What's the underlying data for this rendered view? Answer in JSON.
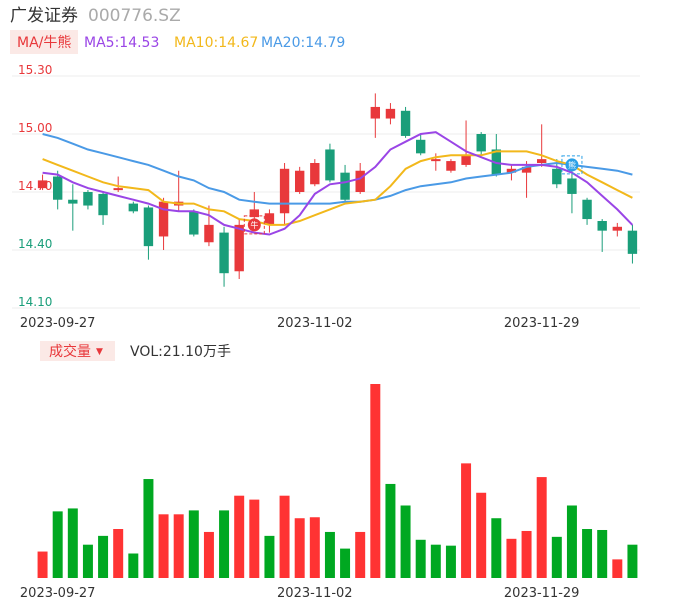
{
  "header": {
    "stock_name": "广发证券",
    "stock_code": "000776.SZ"
  },
  "legend": {
    "ma_label": "MA/牛熊",
    "ma5": "MA5:14.53",
    "ma10": "MA10:14.67",
    "ma20": "MA20:14.79"
  },
  "volume_legend": {
    "label": "成交量",
    "arrow": "▼",
    "vol": "VOL:21.10万手"
  },
  "markers": {
    "bull": "牛",
    "bear": "熊"
  },
  "colors": {
    "up": "#e8383b",
    "down": "#1a9e7a",
    "vol_up": "#ff3333",
    "vol_down": "#00a821",
    "ma5": "#9a45e6",
    "ma10": "#f2b81b",
    "ma20": "#4a9ae6",
    "price_axis": "#e8383b",
    "price_axis_low": "#1a9e7a"
  },
  "chart_data": [
    {
      "type": "candlestick",
      "ylim": [
        14.1,
        15.3
      ],
      "yticks": [
        "15.30",
        "15.00",
        "14.70",
        "14.40",
        "14.10"
      ],
      "xticks": [
        {
          "index": 1,
          "label": "2023-09-27"
        },
        {
          "index": 18,
          "label": "2023-11-02"
        },
        {
          "index": 33,
          "label": "2023-11-29"
        }
      ],
      "candles": [
        {
          "o": 14.72,
          "c": 14.76,
          "h": 14.79,
          "l": 14.71
        },
        {
          "o": 14.78,
          "c": 14.66,
          "h": 14.81,
          "l": 14.61
        },
        {
          "o": 14.66,
          "c": 14.64,
          "h": 14.74,
          "l": 14.5
        },
        {
          "o": 14.7,
          "c": 14.63,
          "h": 14.71,
          "l": 14.61
        },
        {
          "o": 14.69,
          "c": 14.58,
          "h": 14.7,
          "l": 14.53
        },
        {
          "o": 14.71,
          "c": 14.72,
          "h": 14.78,
          "l": 14.7
        },
        {
          "o": 14.64,
          "c": 14.6,
          "h": 14.65,
          "l": 14.59
        },
        {
          "o": 14.62,
          "c": 14.42,
          "h": 14.63,
          "l": 14.35
        },
        {
          "o": 14.47,
          "c": 14.65,
          "h": 14.67,
          "l": 14.4
        },
        {
          "o": 14.63,
          "c": 14.65,
          "h": 14.81,
          "l": 14.6
        },
        {
          "o": 14.6,
          "c": 14.48,
          "h": 14.61,
          "l": 14.47
        },
        {
          "o": 14.44,
          "c": 14.53,
          "h": 14.63,
          "l": 14.42
        },
        {
          "o": 14.49,
          "c": 14.28,
          "h": 14.52,
          "l": 14.21
        },
        {
          "o": 14.29,
          "c": 14.53,
          "h": 14.56,
          "l": 14.25
        },
        {
          "o": 14.57,
          "c": 14.61,
          "h": 14.7,
          "l": 14.55
        },
        {
          "o": 14.53,
          "c": 14.59,
          "h": 14.61,
          "l": 14.49
        },
        {
          "o": 14.59,
          "c": 14.82,
          "h": 14.85,
          "l": 14.53
        },
        {
          "o": 14.7,
          "c": 14.81,
          "h": 14.83,
          "l": 14.69
        },
        {
          "o": 14.74,
          "c": 14.85,
          "h": 14.87,
          "l": 14.73
        },
        {
          "o": 14.92,
          "c": 14.76,
          "h": 14.95,
          "l": 14.75
        },
        {
          "o": 14.8,
          "c": 14.66,
          "h": 14.84,
          "l": 14.64
        },
        {
          "o": 14.7,
          "c": 14.81,
          "h": 14.85,
          "l": 14.69
        },
        {
          "o": 15.08,
          "c": 15.14,
          "h": 15.21,
          "l": 14.98
        },
        {
          "o": 15.08,
          "c": 15.13,
          "h": 15.16,
          "l": 15.05
        },
        {
          "o": 15.12,
          "c": 14.99,
          "h": 15.14,
          "l": 14.98
        },
        {
          "o": 14.97,
          "c": 14.9,
          "h": 15.0,
          "l": 14.89
        },
        {
          "o": 14.86,
          "c": 14.87,
          "h": 14.9,
          "l": 14.81
        },
        {
          "o": 14.81,
          "c": 14.86,
          "h": 14.87,
          "l": 14.8
        },
        {
          "o": 14.84,
          "c": 14.89,
          "h": 15.07,
          "l": 14.83
        },
        {
          "o": 15.0,
          "c": 14.91,
          "h": 15.01,
          "l": 14.89
        },
        {
          "o": 14.92,
          "c": 14.79,
          "h": 15.0,
          "l": 14.78
        },
        {
          "o": 14.8,
          "c": 14.82,
          "h": 14.84,
          "l": 14.76
        },
        {
          "o": 14.8,
          "c": 14.83,
          "h": 14.86,
          "l": 14.67
        },
        {
          "o": 14.85,
          "c": 14.87,
          "h": 15.05,
          "l": 14.83
        },
        {
          "o": 14.82,
          "c": 14.74,
          "h": 14.87,
          "l": 14.72
        },
        {
          "o": 14.77,
          "c": 14.69,
          "h": 14.85,
          "l": 14.59
        },
        {
          "o": 14.66,
          "c": 14.56,
          "h": 14.67,
          "l": 14.53
        },
        {
          "o": 14.55,
          "c": 14.5,
          "h": 14.56,
          "l": 14.39
        },
        {
          "o": 14.5,
          "c": 14.52,
          "h": 14.54,
          "l": 14.47
        },
        {
          "o": 14.5,
          "c": 14.38,
          "h": 14.53,
          "l": 14.33
        }
      ],
      "ma5": [
        14.8,
        14.79,
        14.75,
        14.72,
        14.7,
        14.68,
        14.66,
        14.64,
        14.61,
        14.6,
        14.6,
        14.58,
        14.53,
        14.51,
        14.49,
        14.48,
        14.51,
        14.58,
        14.69,
        14.74,
        14.75,
        14.77,
        14.83,
        14.92,
        14.96,
        15.0,
        15.01,
        14.96,
        14.91,
        14.88,
        14.85,
        14.84,
        14.84,
        14.84,
        14.83,
        14.8,
        14.75,
        14.68,
        14.61,
        14.53
      ],
      "ma10": [
        14.87,
        14.84,
        14.81,
        14.78,
        14.75,
        14.73,
        14.72,
        14.71,
        14.65,
        14.64,
        14.64,
        14.61,
        14.6,
        14.56,
        14.55,
        14.53,
        14.53,
        14.55,
        14.58,
        14.61,
        14.64,
        14.65,
        14.66,
        14.73,
        14.82,
        14.86,
        14.88,
        14.89,
        14.89,
        14.89,
        14.91,
        14.91,
        14.91,
        14.89,
        14.86,
        14.84,
        14.79,
        14.75,
        14.71,
        14.67
      ],
      "ma20": [
        15.0,
        14.98,
        14.95,
        14.92,
        14.9,
        14.88,
        14.86,
        14.84,
        14.81,
        14.78,
        14.76,
        14.72,
        14.7,
        14.66,
        14.65,
        14.64,
        14.64,
        14.64,
        14.64,
        14.64,
        14.65,
        14.65,
        14.66,
        14.68,
        14.71,
        14.73,
        14.74,
        14.75,
        14.77,
        14.78,
        14.79,
        14.8,
        14.83,
        14.84,
        14.85,
        14.84,
        14.83,
        14.82,
        14.81,
        14.79
      ],
      "bull_index": 14,
      "bear_index": 35
    },
    {
      "type": "bar",
      "volumes": [
        27,
        68,
        71,
        34,
        43,
        50,
        25,
        101,
        65,
        65,
        69,
        47,
        69,
        84,
        80,
        43,
        84,
        61,
        62,
        47,
        30,
        47,
        198,
        96,
        74,
        39,
        34,
        33,
        117,
        87,
        61,
        40,
        48,
        103,
        42,
        74,
        50,
        49,
        19,
        34
      ],
      "directions": [
        "up",
        "down",
        "down",
        "down",
        "down",
        "up",
        "down",
        "down",
        "up",
        "up",
        "down",
        "up",
        "down",
        "up",
        "up",
        "down",
        "up",
        "up",
        "up",
        "down",
        "down",
        "up",
        "up",
        "down",
        "down",
        "down",
        "down",
        "down",
        "up",
        "up",
        "down",
        "up",
        "up",
        "up",
        "down",
        "down",
        "down",
        "down",
        "up",
        "down"
      ]
    }
  ]
}
